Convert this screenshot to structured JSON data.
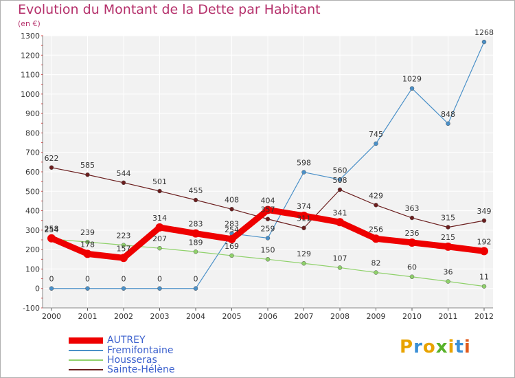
{
  "title": "Evolution du Montant de la Dette par Habitant",
  "subtitle": "(en €)",
  "logo": {
    "text": "Proxiti",
    "colors": [
      "#e8a300",
      "#3a8fd6",
      "#e8a300",
      "#58b22a",
      "#e8a300",
      "#3a8fd6",
      "#e05a1c"
    ]
  },
  "colors": {
    "title": "#b5306b",
    "legend_text": "#3a5fcd",
    "plot_bg": "#f2f2f2",
    "grid": "#ffffff",
    "axis_text": "#333333"
  },
  "chart_data": {
    "type": "line",
    "categories": [
      "2000",
      "2001",
      "2002",
      "2003",
      "2004",
      "2005",
      "2006",
      "2007",
      "2008",
      "2009",
      "2010",
      "2011",
      "2012"
    ],
    "ylim": [
      -100,
      1300
    ],
    "yticks": [
      -100,
      0,
      100,
      200,
      300,
      400,
      500,
      600,
      700,
      800,
      900,
      1000,
      1100,
      1200,
      1300
    ],
    "grid": true,
    "legend_position": "bottom-left",
    "series": [
      {
        "name": "AUTREY",
        "color": "#ee0000",
        "width": 9,
        "values": [
          258,
          178,
          157,
          314,
          283,
          254,
          404,
          374,
          341,
          256,
          236,
          215,
          192
        ],
        "labels": [
          "258",
          "178",
          "157",
          "314",
          "283",
          "254",
          "404",
          "374",
          "341",
          "256",
          "236",
          "215",
          "192"
        ]
      },
      {
        "name": "Fremifontaine",
        "color": "#4a90c8",
        "width": 1.2,
        "values": [
          0,
          0,
          0,
          0,
          0,
          283,
          259,
          598,
          560,
          745,
          1029,
          848,
          1268
        ],
        "labels": [
          "0",
          "0",
          "0",
          "0",
          "0",
          "283",
          "259",
          "598",
          "560",
          "745",
          "1029",
          "848",
          "1268"
        ]
      },
      {
        "name": "Housseras",
        "color": "#8fd16a",
        "width": 1.2,
        "values": [
          254,
          239,
          223,
          207,
          189,
          169,
          150,
          129,
          107,
          82,
          60,
          36,
          11
        ],
        "labels": [
          "254",
          "239",
          "223",
          "207",
          "189",
          "169",
          "150",
          "129",
          "107",
          "82",
          "60",
          "36",
          "11"
        ]
      },
      {
        "name": "Sainte-Hélène",
        "color": "#6b1e1e",
        "width": 1.2,
        "values": [
          622,
          585,
          544,
          501,
          455,
          408,
          357,
          311,
          508,
          429,
          363,
          315,
          349
        ],
        "labels": [
          "622",
          "585",
          "544",
          "501",
          "455",
          "408",
          "357",
          "311",
          "508",
          "429",
          "363",
          "315",
          "349"
        ]
      }
    ]
  }
}
